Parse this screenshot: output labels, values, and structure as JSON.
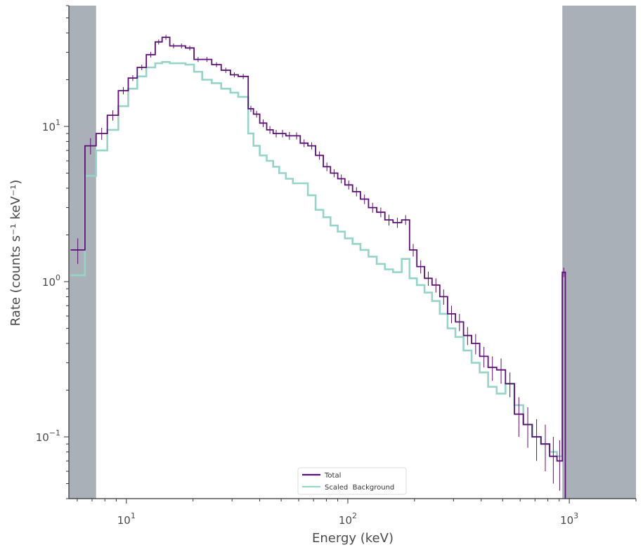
{
  "chart_data": {
    "type": "line",
    "xscale": "log",
    "yscale": "log",
    "xlim": [
      5.5,
      2000
    ],
    "ylim": [
      0.04,
      60
    ],
    "xlabel": "Energy (keV)",
    "ylabel": "Rate (counts s⁻¹ keV⁻¹)",
    "x_ticks": [
      {
        "value": 10,
        "base": "10",
        "exp": "1"
      },
      {
        "value": 100,
        "base": "10",
        "exp": "2"
      },
      {
        "value": 1000,
        "base": "10",
        "exp": "3"
      }
    ],
    "y_ticks": [
      {
        "value": 0.1,
        "base": "10",
        "exp": "−1"
      },
      {
        "value": 1,
        "base": "10",
        "exp": "0"
      },
      {
        "value": 10,
        "base": "10",
        "exp": "1"
      }
    ],
    "excluded_ranges": [
      [
        5.5,
        7.3
      ],
      [
        930,
        2000
      ]
    ],
    "legend": {
      "placement": "bottom-center"
    },
    "colors": {
      "total": "#5c0f74",
      "background": "#94d5c8",
      "excluded": "#a9b0b7",
      "axis": "#333333"
    },
    "series": [
      {
        "name": "Total",
        "style": "step-with-errors",
        "edges": [
          5.6,
          6.5,
          7.3,
          8.2,
          9.2,
          10.2,
          11.2,
          12.3,
          13.5,
          14.5,
          15.7,
          17.0,
          18.5,
          20.2,
          22.0,
          24.3,
          26.8,
          29.5,
          32.0,
          35.5,
          37.5,
          40.0,
          43.0,
          46.0,
          49.0,
          52.5,
          56.5,
          61.0,
          66.0,
          71.5,
          77.5,
          83.5,
          90.0,
          97.0,
          105.0,
          114.0,
          124.0,
          135.0,
          147.0,
          160.0,
          175.0,
          190.0,
          205.0,
          222.0,
          240.0,
          260.0,
          282.0,
          306.0,
          333.0,
          362.0,
          394.0,
          430.0,
          470.0,
          515.0,
          565.0,
          620.0,
          680.0,
          745.0,
          815.0,
          880.0,
          930.0,
          960.0,
          1000.0
        ],
        "values": [
          1.6,
          7.5,
          9.0,
          11.8,
          17.0,
          20.5,
          24.0,
          29.0,
          35.0,
          37.5,
          33.0,
          33.0,
          32.0,
          27.0,
          27.0,
          25.0,
          23.0,
          21.5,
          21.0,
          13.0,
          12.0,
          10.5,
          9.5,
          9.0,
          9.0,
          8.7,
          8.7,
          7.8,
          7.5,
          6.5,
          5.5,
          5.0,
          4.6,
          4.2,
          3.8,
          3.4,
          3.0,
          2.8,
          2.5,
          2.4,
          2.5,
          1.6,
          1.25,
          1.05,
          0.95,
          0.8,
          0.62,
          0.55,
          0.45,
          0.4,
          0.33,
          0.28,
          0.27,
          0.22,
          0.14,
          0.12,
          0.1,
          0.09,
          0.075,
          0.07,
          1.15,
          0.02
        ],
        "errors": [
          0.3,
          0.9,
          0.8,
          0.9,
          0.9,
          0.9,
          1.0,
          1.2,
          1.3,
          1.4,
          1.2,
          1.2,
          1.1,
          1.0,
          1.0,
          0.9,
          0.9,
          0.8,
          0.8,
          0.6,
          0.6,
          0.6,
          0.55,
          0.5,
          0.5,
          0.5,
          0.45,
          0.45,
          0.4,
          0.4,
          0.35,
          0.3,
          0.3,
          0.28,
          0.26,
          0.24,
          0.22,
          0.2,
          0.2,
          0.18,
          0.18,
          0.15,
          0.12,
          0.11,
          0.1,
          0.09,
          0.08,
          0.07,
          0.06,
          0.06,
          0.05,
          0.05,
          0.05,
          0.04,
          0.04,
          0.035,
          0.03,
          0.03,
          0.025,
          0.025,
          0.08,
          0.0
        ]
      },
      {
        "name": "Scaled  Background",
        "style": "step",
        "edges": [
          5.6,
          6.5,
          7.3,
          8.2,
          9.2,
          10.2,
          11.2,
          12.3,
          13.5,
          14.5,
          15.7,
          17.0,
          18.5,
          20.2,
          22.0,
          24.3,
          26.8,
          29.5,
          32.0,
          35.5,
          37.5,
          40.0,
          43.0,
          46.0,
          49.0,
          52.5,
          56.5,
          61.0,
          66.0,
          71.5,
          77.5,
          83.5,
          90.0,
          97.0,
          105.0,
          114.0,
          124.0,
          135.0,
          147.0,
          160.0,
          175.0,
          190.0,
          205.0,
          222.0,
          240.0,
          260.0,
          282.0,
          306.0,
          333.0,
          362.0,
          394.0,
          430.0,
          470.0,
          515.0,
          565.0,
          620.0,
          680.0,
          745.0,
          815.0,
          880.0,
          930.0,
          960.0,
          1000.0
        ],
        "values": [
          1.1,
          4.8,
          7.0,
          9.5,
          13.5,
          17.5,
          21.0,
          24.0,
          25.5,
          26.0,
          25.5,
          25.5,
          25.0,
          22.5,
          20.0,
          19.0,
          17.5,
          16.5,
          15.5,
          9.0,
          7.5,
          6.5,
          6.0,
          5.5,
          5.0,
          4.6,
          4.3,
          4.3,
          3.6,
          2.9,
          2.6,
          2.3,
          2.1,
          1.9,
          1.75,
          1.6,
          1.45,
          1.3,
          1.2,
          1.15,
          1.4,
          1.05,
          0.95,
          0.85,
          0.75,
          0.62,
          0.5,
          0.44,
          0.36,
          0.3,
          0.26,
          0.21,
          0.19,
          0.22,
          0.16,
          0.12,
          0.1,
          0.09,
          0.08,
          0.075,
          1.1,
          0.02
        ]
      }
    ]
  }
}
